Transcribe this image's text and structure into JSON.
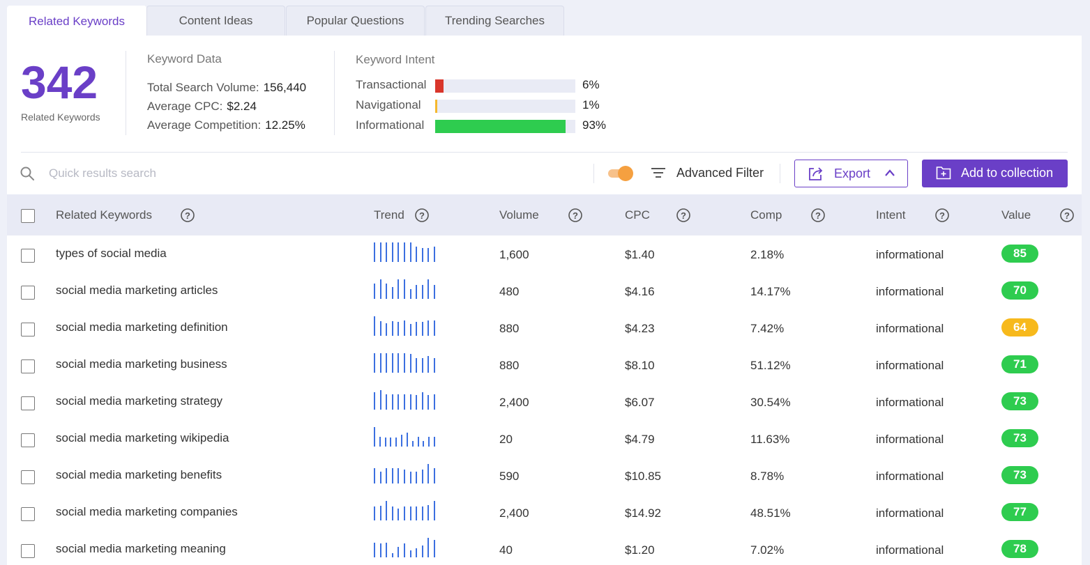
{
  "tabs": [
    "Related Keywords",
    "Content Ideas",
    "Popular Questions",
    "Trending Searches"
  ],
  "summary": {
    "count": "342",
    "count_label": "Related Keywords",
    "keyword_data_title": "Keyword Data",
    "total_volume_label": "Total Search Volume:",
    "total_volume_value": "156,440",
    "avg_cpc_label": "Average CPC:",
    "avg_cpc_value": "$2.24",
    "avg_comp_label": "Average Competition:",
    "avg_comp_value": "12.25%"
  },
  "intent": {
    "title": "Keyword Intent",
    "rows": [
      {
        "label": "Transactional",
        "pct": "6%",
        "fraction": 0.06,
        "color": "#d9362b"
      },
      {
        "label": "Navigational",
        "pct": "1%",
        "fraction": 0.01,
        "color": "#f5b82e"
      },
      {
        "label": "Informational",
        "pct": "93%",
        "fraction": 0.93,
        "color": "#2ecc4f"
      }
    ]
  },
  "toolbar": {
    "search_placeholder": "Quick results search",
    "advanced_filter": "Advanced Filter",
    "export": "Export",
    "add_to_collection": "Add to collection",
    "toggle_on": true
  },
  "columns": {
    "keyword": "Related Keywords",
    "trend": "Trend",
    "volume": "Volume",
    "cpc": "CPC",
    "comp": "Comp",
    "intent": "Intent",
    "value": "Value"
  },
  "colors": {
    "accent": "#6a3fc7",
    "trend_bar": "#3b6fe0",
    "badge_green": "#2ecc4f",
    "badge_yellow": "#f7b91c"
  },
  "rows": [
    {
      "keyword": "types of social media",
      "volume": "1,600",
      "cpc": "$1.40",
      "comp": "2.18%",
      "intent": "informational",
      "value": "85",
      "value_color": "#2ecc4f",
      "trend": [
        1,
        1,
        1,
        1,
        1,
        1,
        1,
        0.8,
        0.7,
        0.7,
        0.8
      ]
    },
    {
      "keyword": "social media marketing articles",
      "volume": "480",
      "cpc": "$4.16",
      "comp": "14.17%",
      "intent": "informational",
      "value": "70",
      "value_color": "#2ecc4f",
      "trend": [
        0.8,
        1,
        0.8,
        0.6,
        1,
        1,
        0.5,
        0.7,
        0.7,
        1,
        0.7
      ]
    },
    {
      "keyword": "social media marketing definition",
      "volume": "880",
      "cpc": "$4.23",
      "comp": "7.42%",
      "intent": "informational",
      "value": "64",
      "value_color": "#f7b91c",
      "trend": [
        1,
        0.75,
        0.65,
        0.75,
        0.7,
        0.8,
        0.6,
        0.7,
        0.7,
        0.8,
        0.8
      ]
    },
    {
      "keyword": "social media marketing business",
      "volume": "880",
      "cpc": "$8.10",
      "comp": "51.12%",
      "intent": "informational",
      "value": "71",
      "value_color": "#2ecc4f",
      "trend": [
        1,
        1,
        1,
        1,
        1,
        1,
        0.95,
        0.75,
        0.75,
        0.85,
        0.75
      ]
    },
    {
      "keyword": "social media marketing strategy",
      "volume": "2,400",
      "cpc": "$6.07",
      "comp": "30.54%",
      "intent": "informational",
      "value": "73",
      "value_color": "#2ecc4f",
      "trend": [
        0.9,
        1,
        0.8,
        0.8,
        0.8,
        0.8,
        0.8,
        0.75,
        0.9,
        0.75,
        0.8
      ]
    },
    {
      "keyword": "social media marketing wikipedia",
      "volume": "20",
      "cpc": "$4.79",
      "comp": "11.63%",
      "intent": "informational",
      "value": "73",
      "value_color": "#2ecc4f",
      "trend": [
        1,
        0.5,
        0.45,
        0.45,
        0.45,
        0.6,
        0.7,
        0.3,
        0.5,
        0.3,
        0.5,
        0.5
      ]
    },
    {
      "keyword": "social media marketing benefits",
      "volume": "590",
      "cpc": "$10.85",
      "comp": "8.78%",
      "intent": "informational",
      "value": "73",
      "value_color": "#2ecc4f",
      "trend": [
        0.8,
        0.6,
        0.8,
        0.8,
        0.8,
        0.7,
        0.6,
        0.6,
        0.7,
        1,
        0.8
      ]
    },
    {
      "keyword": "social media marketing companies",
      "volume": "2,400",
      "cpc": "$14.92",
      "comp": "48.51%",
      "intent": "informational",
      "value": "77",
      "value_color": "#2ecc4f",
      "trend": [
        0.7,
        0.75,
        1,
        0.7,
        0.6,
        0.7,
        0.7,
        0.7,
        0.7,
        0.8,
        1
      ]
    },
    {
      "keyword": "social media marketing meaning",
      "volume": "40",
      "cpc": "$1.20",
      "comp": "7.02%",
      "intent": "informational",
      "value": "78",
      "value_color": "#2ecc4f",
      "trend": [
        0.75,
        0.7,
        0.75,
        0.2,
        0.55,
        0.7,
        0.35,
        0.45,
        0.6,
        1,
        0.9
      ]
    }
  ]
}
